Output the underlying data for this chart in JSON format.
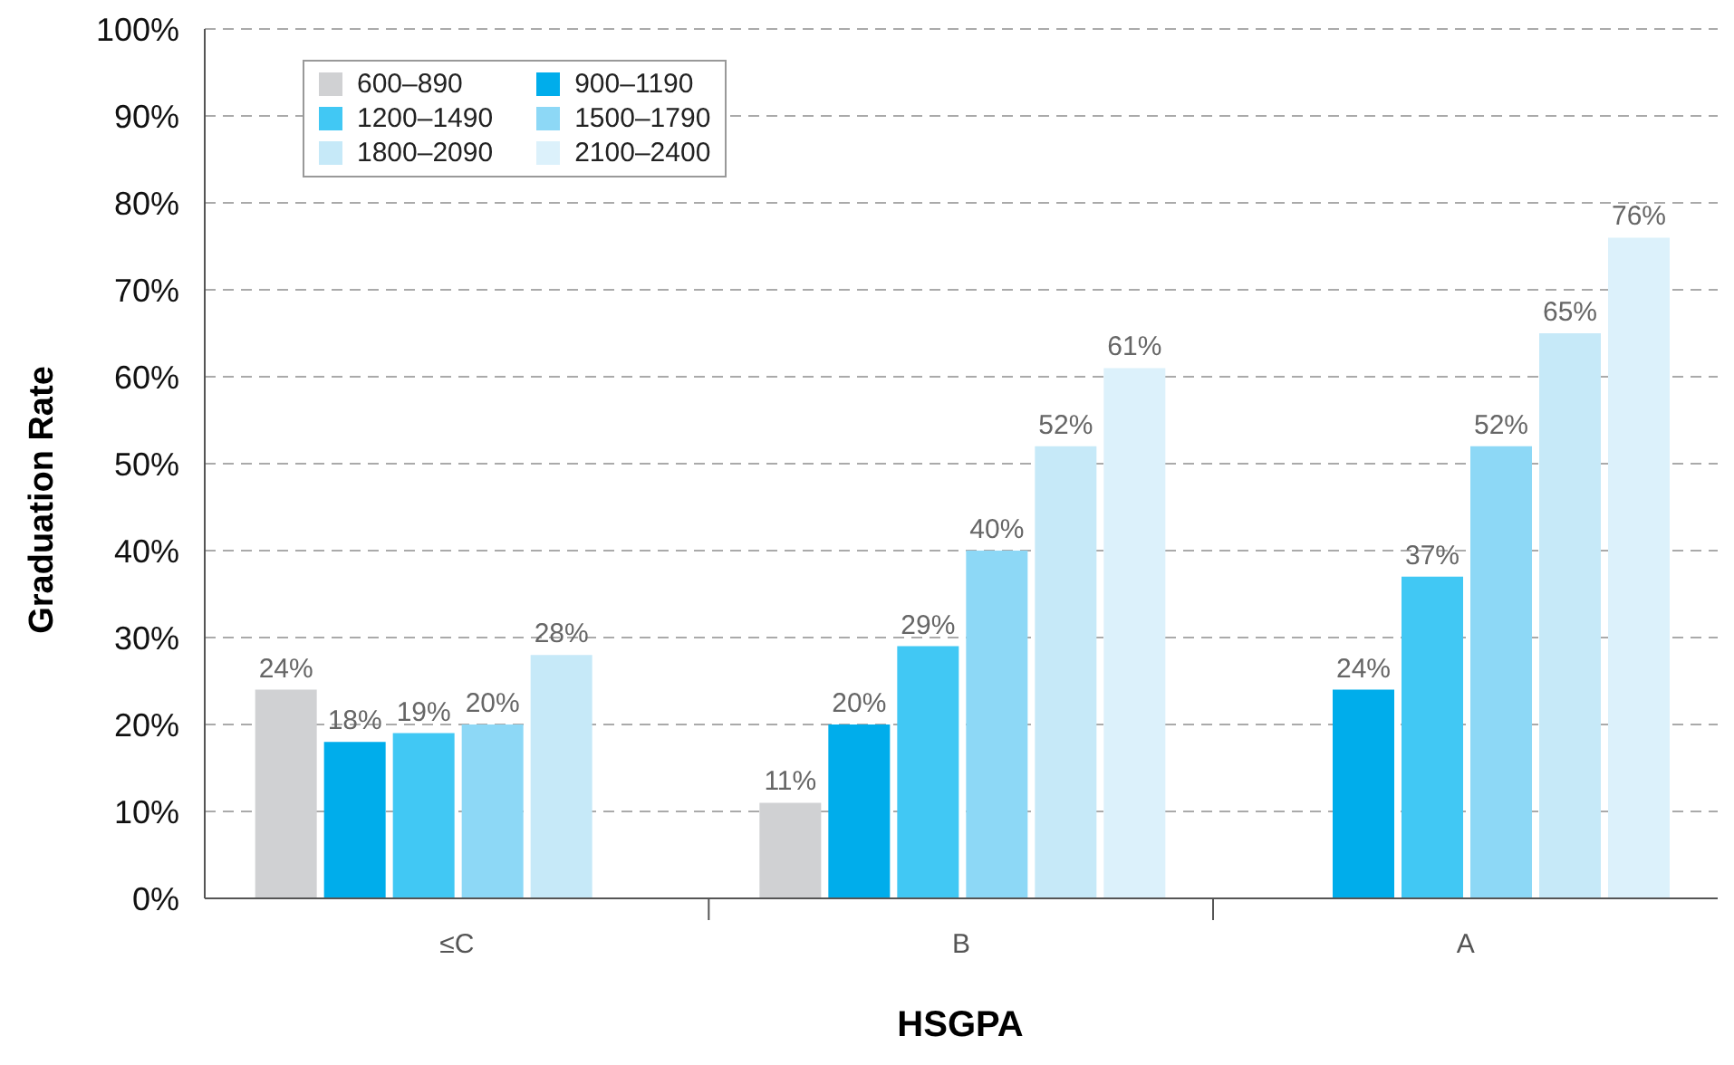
{
  "chart_data": {
    "type": "bar",
    "xlabel": "HSGPA",
    "ylabel": "Graduation Rate",
    "categories": [
      "≤C",
      "B",
      "A"
    ],
    "series": [
      {
        "name": "600–890",
        "color": "#d0d1d3",
        "values": [
          24,
          11,
          null
        ],
        "value_labels": [
          "24%",
          "11%",
          null
        ]
      },
      {
        "name": "900–1190",
        "color": "#00adeb",
        "values": [
          18,
          20,
          24
        ],
        "value_labels": [
          "18%",
          "20%",
          "24%"
        ]
      },
      {
        "name": "1200–1490",
        "color": "#41c8f4",
        "values": [
          19,
          29,
          37
        ],
        "value_labels": [
          "19%",
          "29%",
          "37%"
        ]
      },
      {
        "name": "1500–1790",
        "color": "#8dd8f6",
        "values": [
          20,
          40,
          52
        ],
        "value_labels": [
          "20%",
          "40%",
          "52%"
        ]
      },
      {
        "name": "1800–2090",
        "color": "#c6e9f8",
        "values": [
          28,
          52,
          65
        ],
        "value_labels": [
          "28%",
          "52%",
          "65%"
        ]
      },
      {
        "name": "2100–2400",
        "color": "#dcf1fb",
        "values": [
          null,
          61,
          76
        ],
        "value_labels": [
          null,
          "61%",
          "76%"
        ]
      }
    ],
    "ylim": [
      0,
      100
    ],
    "yticks": [
      {
        "value": 0,
        "label": "0%"
      },
      {
        "value": 10,
        "label": "10%"
      },
      {
        "value": 20,
        "label": "20%"
      },
      {
        "value": 30,
        "label": "30%"
      },
      {
        "value": 40,
        "label": "40%"
      },
      {
        "value": 50,
        "label": "50%"
      },
      {
        "value": 60,
        "label": "60%"
      },
      {
        "value": 70,
        "label": "70%"
      },
      {
        "value": 80,
        "label": "80%"
      },
      {
        "value": 90,
        "label": "90%"
      },
      {
        "value": 100,
        "label": "100%"
      }
    ],
    "grid": "y",
    "legend": "top left"
  }
}
